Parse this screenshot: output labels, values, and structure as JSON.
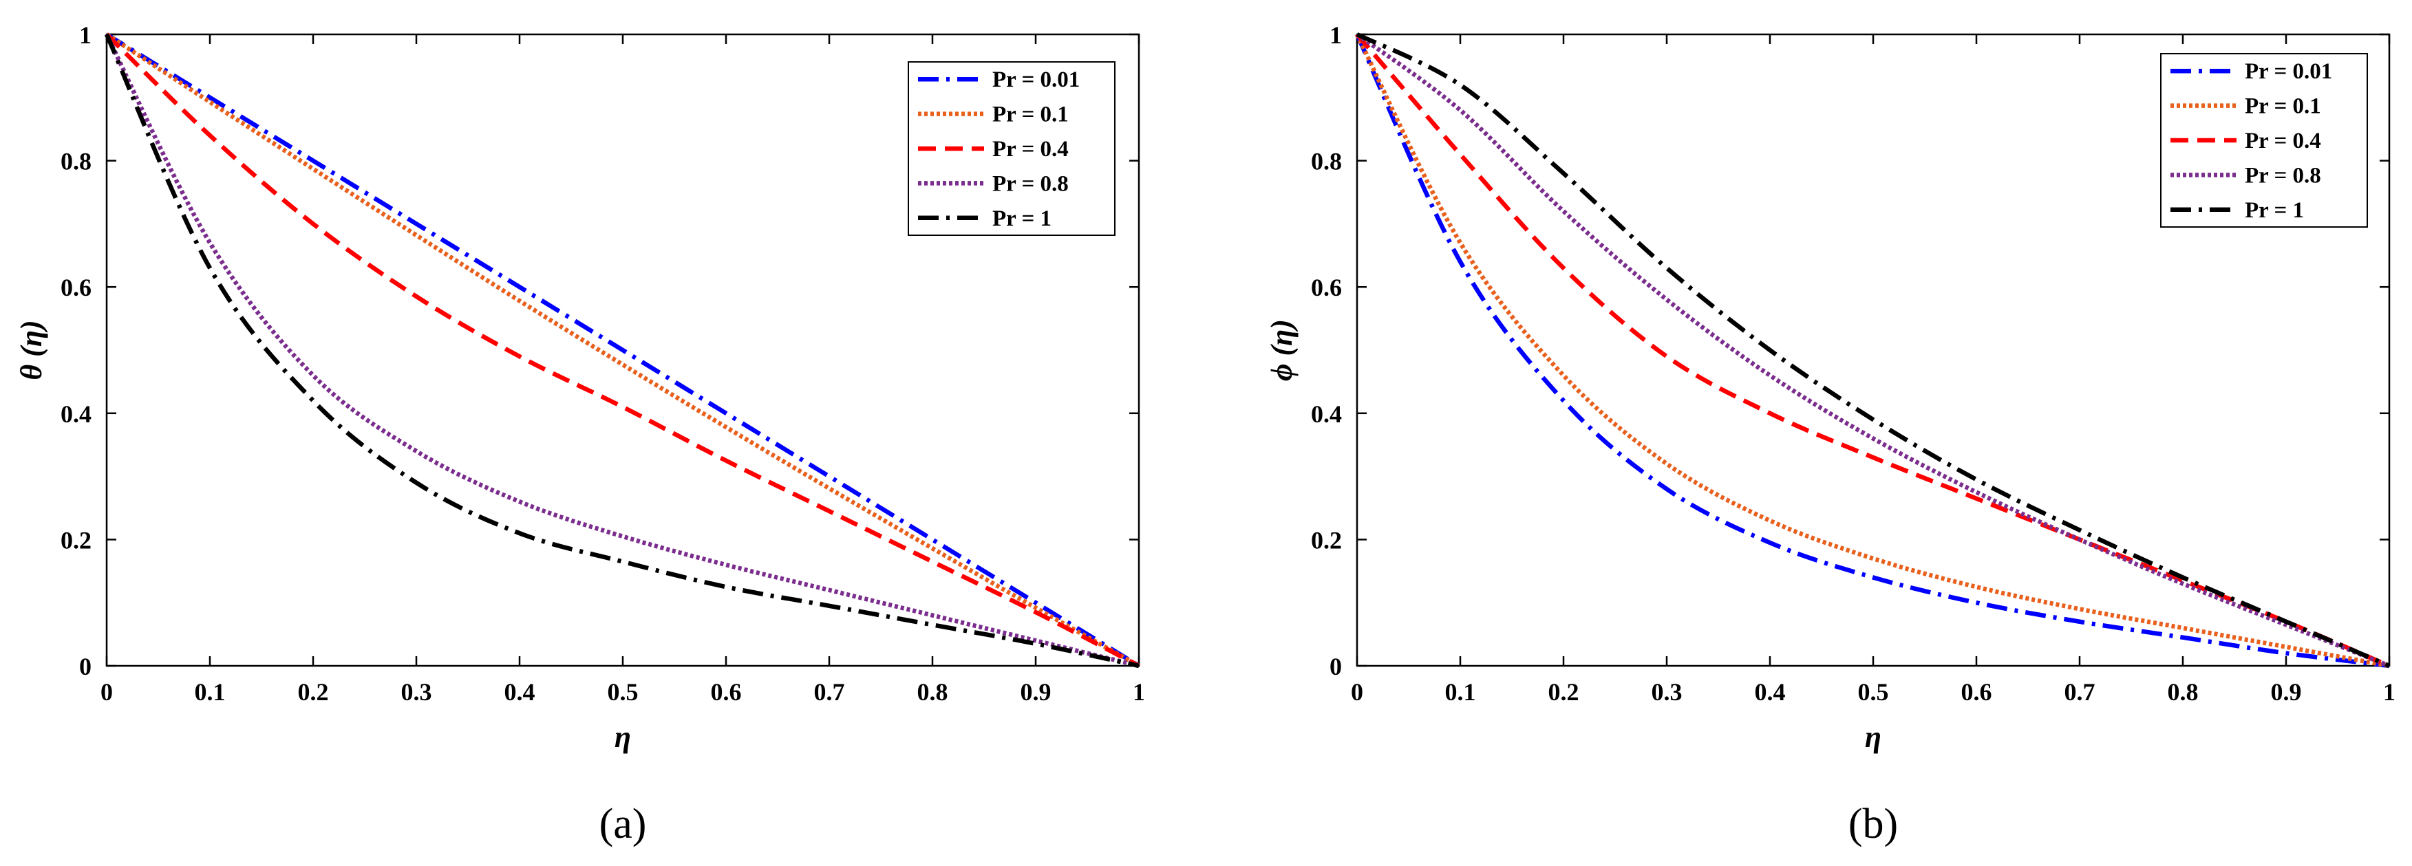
{
  "chart_data": [
    {
      "type": "line",
      "panel_label": "(a)",
      "title": "",
      "xlabel": "η",
      "ylabel": "θ (η)",
      "xlim": [
        0,
        1
      ],
      "ylim": [
        0,
        1
      ],
      "xticks": [
        "0",
        "0.1",
        "0.2",
        "0.3",
        "0.4",
        "0.5",
        "0.6",
        "0.7",
        "0.8",
        "0.9",
        "1"
      ],
      "yticks": [
        "0",
        "0.2",
        "0.4",
        "0.6",
        "0.8",
        "1"
      ],
      "legend_position": "top-right",
      "x": [
        0,
        0.1,
        0.2,
        0.3,
        0.4,
        0.5,
        0.6,
        0.7,
        0.8,
        0.9,
        1.0
      ],
      "series": [
        {
          "name": "Pr = 0.01",
          "color": "#0000ff",
          "dash": "dash-dot",
          "values": [
            1.0,
            0.9,
            0.8,
            0.7,
            0.6,
            0.5,
            0.4,
            0.3,
            0.2,
            0.1,
            0.0
          ]
        },
        {
          "name": "Pr = 0.1",
          "color": "#e8601c",
          "dash": "dotted",
          "values": [
            1.0,
            0.893,
            0.787,
            0.682,
            0.578,
            0.477,
            0.378,
            0.281,
            0.186,
            0.092,
            0.0
          ]
        },
        {
          "name": "Pr = 0.4",
          "color": "#ff0000",
          "dash": "dashed",
          "values": [
            1.0,
            0.84,
            0.7,
            0.585,
            0.49,
            0.41,
            0.325,
            0.245,
            0.165,
            0.085,
            0.0
          ]
        },
        {
          "name": "Pr = 0.8",
          "color": "#7b2d8e",
          "dash": "dotted",
          "values": [
            1.0,
            0.67,
            0.46,
            0.34,
            0.26,
            0.205,
            0.16,
            0.12,
            0.08,
            0.04,
            0.0
          ]
        },
        {
          "name": "Pr = 1",
          "color": "#000000",
          "dash": "dash-dot",
          "values": [
            1.0,
            0.63,
            0.42,
            0.29,
            0.21,
            0.165,
            0.125,
            0.095,
            0.065,
            0.035,
            0.0
          ]
        }
      ]
    },
    {
      "type": "line",
      "panel_label": "(b)",
      "title": "",
      "xlabel": "η",
      "ylabel": "ϕ (η)",
      "xlim": [
        0,
        1
      ],
      "ylim": [
        0,
        1
      ],
      "xticks": [
        "0",
        "0.1",
        "0.2",
        "0.3",
        "0.4",
        "0.5",
        "0.6",
        "0.7",
        "0.8",
        "0.9",
        "1"
      ],
      "yticks": [
        "0",
        "0.2",
        "0.4",
        "0.6",
        "0.8",
        "1"
      ],
      "legend_position": "top-right",
      "x": [
        0,
        0.1,
        0.2,
        0.3,
        0.4,
        0.5,
        0.6,
        0.7,
        0.8,
        0.9,
        1.0
      ],
      "series": [
        {
          "name": "Pr = 0.01",
          "color": "#0000ff",
          "dash": "dash-dot",
          "values": [
            1.0,
            0.64,
            0.42,
            0.28,
            0.195,
            0.14,
            0.1,
            0.07,
            0.045,
            0.02,
            0.0
          ]
        },
        {
          "name": "Pr = 0.1",
          "color": "#e8601c",
          "dash": "dotted",
          "values": [
            1.0,
            0.67,
            0.46,
            0.32,
            0.23,
            0.17,
            0.125,
            0.09,
            0.06,
            0.03,
            0.0
          ]
        },
        {
          "name": "Pr = 0.4",
          "color": "#ff0000",
          "dash": "dashed",
          "values": [
            1.0,
            0.81,
            0.63,
            0.49,
            0.4,
            0.33,
            0.265,
            0.2,
            0.135,
            0.07,
            0.0
          ]
        },
        {
          "name": "Pr = 0.8",
          "color": "#7b2d8e",
          "dash": "dotted",
          "values": [
            1.0,
            0.88,
            0.72,
            0.58,
            0.46,
            0.36,
            0.275,
            0.2,
            0.13,
            0.065,
            0.0
          ]
        },
        {
          "name": "Pr = 1",
          "color": "#000000",
          "dash": "dash-dot",
          "values": [
            1.0,
            0.92,
            0.78,
            0.63,
            0.5,
            0.39,
            0.295,
            0.215,
            0.14,
            0.07,
            0.0
          ]
        }
      ]
    }
  ]
}
